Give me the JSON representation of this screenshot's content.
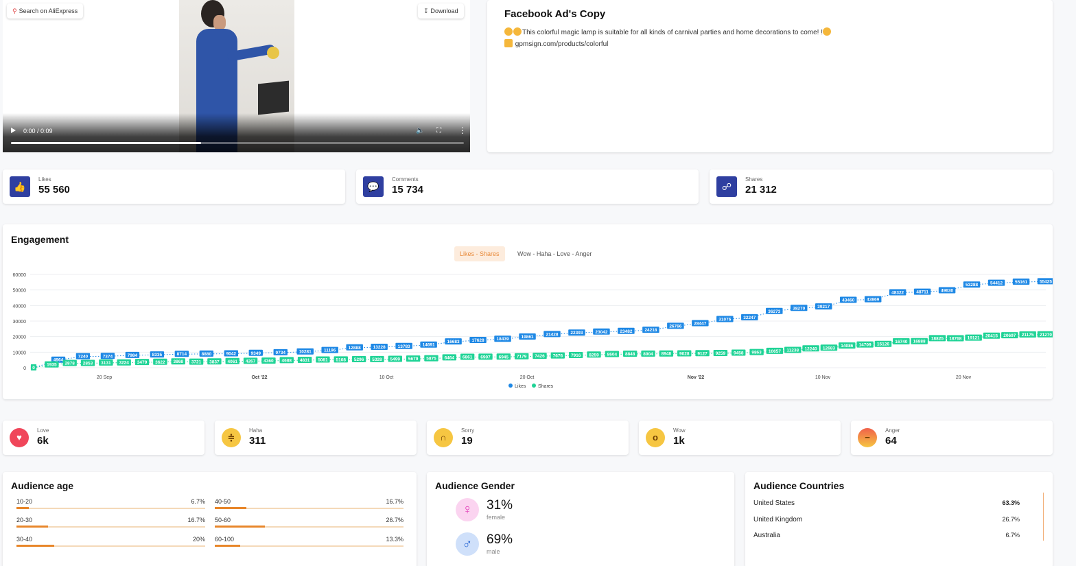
{
  "video": {
    "search_label": "Search on AliExpress",
    "download_label": "Download",
    "time": "0:00 / 0:09",
    "progress": 0.42
  },
  "adcopy": {
    "title": "Facebook Ad's Copy",
    "text": "This colorful magic lamp is suitable for all kinds of carnival parties and home decorations to come! !",
    "link": "gpmsign.com/products/colorful"
  },
  "metrics": {
    "likes": {
      "label": "Likes",
      "value": "55 560",
      "icon": "thumbs-up-icon"
    },
    "comments": {
      "label": "Comments",
      "value": "15 734",
      "icon": "comment-icon"
    },
    "shares": {
      "label": "Shares",
      "value": "21 312",
      "icon": "share-icon"
    }
  },
  "engagement": {
    "title": "Engagement",
    "tab_active": "Likes - Shares",
    "tab_inactive": "Wow - Haha - Love - Anger"
  },
  "chart_data": {
    "type": "line",
    "ylim": [
      0,
      60000
    ],
    "yticks": [
      0,
      10000,
      20000,
      30000,
      40000,
      50000,
      60000
    ],
    "xticks": [
      "20 Sep",
      "Oct '22",
      "10 Oct",
      "20 Oct",
      "Nov '22",
      "10 Nov",
      "20 Nov"
    ],
    "legend": "bottom",
    "series": [
      {
        "name": "Likes",
        "color": "#1e88e5",
        "values": [
          0,
          4964,
          7240,
          7374,
          7984,
          8335,
          8714,
          8880,
          9042,
          9349,
          9734,
          10281,
          11196,
          12888,
          13228,
          13783,
          14691,
          16683,
          17628,
          18439,
          19861,
          21428,
          22393,
          23042,
          23482,
          24218,
          26766,
          28447,
          31076,
          32247,
          36273,
          38270,
          39217,
          43460,
          43869,
          48322,
          48711,
          49630,
          53288,
          54412,
          55161,
          55425
        ]
      },
      {
        "name": "Shares",
        "color": "#1fd396",
        "values": [
          0,
          1935,
          2878,
          2853,
          3131,
          3224,
          3479,
          3622,
          3868,
          3721,
          3837,
          4061,
          4267,
          4360,
          4688,
          4831,
          5081,
          5108,
          5296,
          5328,
          5499,
          5679,
          5875,
          6464,
          6861,
          6907,
          6945,
          7179,
          7426,
          7676,
          7916,
          8259,
          8604,
          8848,
          8904,
          8948,
          9028,
          9127,
          9259,
          9458,
          9863,
          10657,
          11238,
          12240,
          12683,
          14086,
          14709,
          15126,
          16740,
          16888,
          18825,
          18768,
          19121,
          20415,
          20697,
          21175,
          21270
        ]
      }
    ]
  },
  "reactions": [
    {
      "label": "Love",
      "value": "6k",
      "icon": "heart-icon",
      "color": "#f0465a"
    },
    {
      "label": "Haha",
      "value": "311",
      "icon": "laughing-face-icon",
      "color": "#f6c642"
    },
    {
      "label": "Sorry",
      "value": "19",
      "icon": "sad-face-icon",
      "color": "#f6c642"
    },
    {
      "label": "Wow",
      "value": "1k",
      "icon": "surprised-face-icon",
      "color": "#f6c642"
    },
    {
      "label": "Anger",
      "value": "64",
      "icon": "angry-face-icon",
      "color": "#f0784a"
    }
  ],
  "audience_age": {
    "title": "Audience age",
    "rows": [
      {
        "range": "10-20",
        "pct": "6.7%",
        "value": 6.7
      },
      {
        "range": "40-50",
        "pct": "16.7%",
        "value": 16.7
      },
      {
        "range": "20-30",
        "pct": "16.7%",
        "value": 16.7
      },
      {
        "range": "50-60",
        "pct": "26.7%",
        "value": 26.7
      },
      {
        "range": "30-40",
        "pct": "20%",
        "value": 20
      },
      {
        "range": "60-100",
        "pct": "13.3%",
        "value": 13.3
      }
    ]
  },
  "audience_gender": {
    "title": "Audience Gender",
    "female_pct": "31%",
    "female_label": "female",
    "male_pct": "69%",
    "male_label": "male"
  },
  "audience_countries": {
    "title": "Audience Countries",
    "rows": [
      {
        "name": "United States",
        "pct": "63.3%"
      },
      {
        "name": "United Kingdom",
        "pct": "26.7%"
      },
      {
        "name": "Australia",
        "pct": "6.7%"
      }
    ]
  }
}
